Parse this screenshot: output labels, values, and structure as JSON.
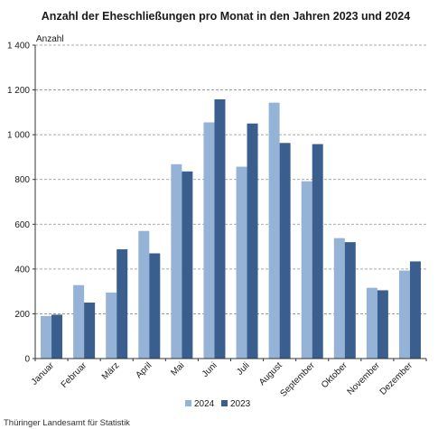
{
  "chart_data": {
    "type": "bar",
    "title": "Anzahl der Eheschließungen pro Monat in den Jahren 2023 und 2024",
    "ylabel": "Anzahl",
    "xlabel": "",
    "ylim": [
      0,
      1400
    ],
    "yticks": [
      0,
      200,
      400,
      600,
      800,
      1000,
      1200,
      1400
    ],
    "ytick_labels": [
      "0",
      "200",
      "400",
      "600",
      "800",
      "1 000",
      "1 200",
      "1 400"
    ],
    "grid": "horizontal dashed",
    "legend": "bottom-center",
    "categories": [
      "Januar",
      "Februar",
      "März",
      "April",
      "Mai",
      "Juni",
      "Juli",
      "August",
      "September",
      "Oktober",
      "November",
      "Dezember"
    ],
    "series": [
      {
        "name": "2024",
        "color": "#94b3d6",
        "values": [
          190,
          328,
          295,
          570,
          868,
          1055,
          857,
          1143,
          792,
          538,
          316,
          393
        ]
      },
      {
        "name": "2023",
        "color": "#3a5f8f",
        "values": [
          196,
          250,
          488,
          470,
          836,
          1158,
          1050,
          963,
          958,
          520,
          305,
          434
        ]
      }
    ]
  },
  "source": "Thüringer Landesamt für Statistik"
}
